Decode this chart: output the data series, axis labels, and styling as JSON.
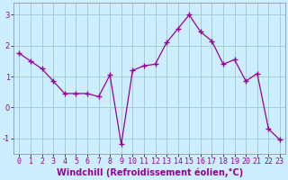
{
  "x": [
    0,
    1,
    2,
    3,
    4,
    5,
    6,
    7,
    8,
    9,
    10,
    11,
    12,
    13,
    14,
    15,
    16,
    17,
    18,
    19,
    20,
    21,
    22,
    23
  ],
  "y": [
    1.75,
    1.5,
    1.25,
    0.85,
    0.45,
    0.45,
    0.45,
    0.35,
    1.05,
    -1.2,
    1.2,
    1.35,
    1.4,
    2.1,
    2.55,
    3.0,
    2.45,
    2.15,
    1.4,
    1.55,
    0.85,
    1.1,
    -0.7,
    -1.05
  ],
  "line_color": "#990099",
  "marker": "+",
  "bg_color": "#cceeff",
  "grid_color": "#99cccc",
  "xlabel": "Windchill (Refroidissement éolien,°C)",
  "xlabel_color": "#990099",
  "yticks": [
    -1,
    0,
    1,
    2,
    3
  ],
  "xticks": [
    0,
    1,
    2,
    3,
    4,
    5,
    6,
    7,
    8,
    9,
    10,
    11,
    12,
    13,
    14,
    15,
    16,
    17,
    18,
    19,
    20,
    21,
    22,
    23
  ],
  "ylim": [
    -1.5,
    3.4
  ],
  "xlim": [
    -0.5,
    23.5
  ],
  "label_fontsize": 7,
  "tick_fontsize": 6
}
